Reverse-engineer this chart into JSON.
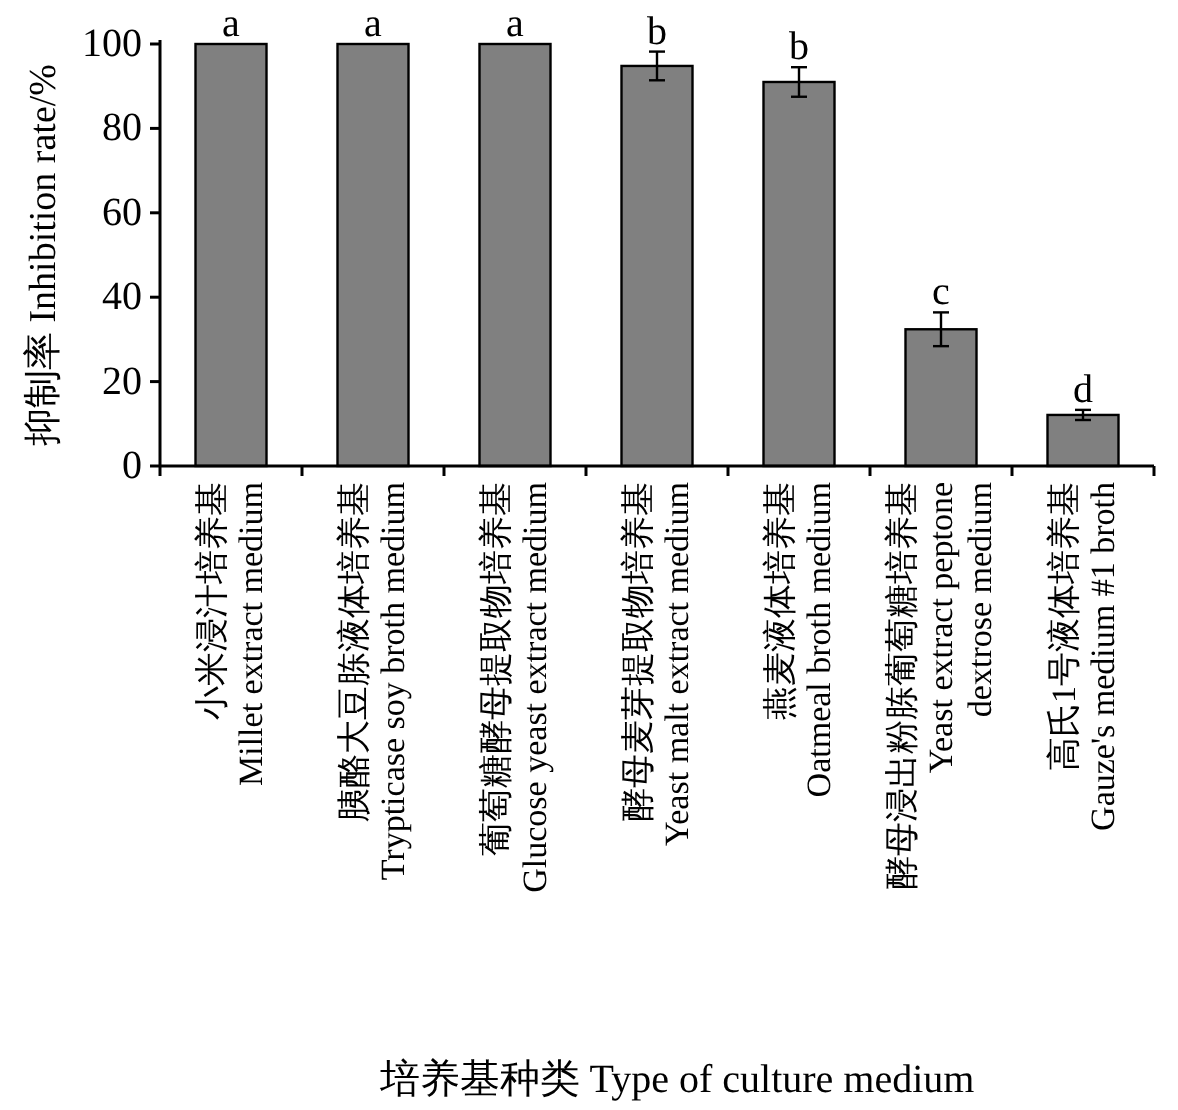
{
  "chart_data": {
    "type": "bar",
    "xlabel": "培养基种类 Type of culture medium",
    "ylabel": "抑制率 Inhibition rate/%",
    "categories": [
      "小米浸汁培养基\nMillet extract medium",
      "胰酪大豆胨液体培养基\nTrypticase soy broth medium",
      "葡萄糖酵母提取物培养基\nGlucose yeast extract medium",
      "酵母麦芽提取物培养基\nYeast malt extract medium",
      "燕麦液体培养基\nOatmeal broth medium",
      "酵母浸出粉胨葡萄糖培养基\nYeast extract peptone\ndextrose medium",
      "高氏1号液体培养基\nGauze's medium #1 broth"
    ],
    "values": [
      100,
      100,
      100,
      94.8,
      91.0,
      32.4,
      12.1
    ],
    "errors": [
      null,
      null,
      null,
      3.4,
      3.5,
      4,
      1.2
    ],
    "color": "#808080",
    "ylim": [
      0,
      100
    ],
    "yticks": [
      0,
      20,
      40,
      60,
      80,
      100
    ],
    "grid": false,
    "annotations": [
      {
        "text": "a",
        "x": "小米浸汁培养基\nMillet extract medium",
        "y": 100
      },
      {
        "text": "a",
        "x": "胰酪大豆胨液体培养基\nTrypticase soy broth medium",
        "y": 100
      },
      {
        "text": "a",
        "x": "葡萄糖酵母提取物培养基\nGlucose yeast extract medium",
        "y": 100
      },
      {
        "text": "b",
        "x": "酵母麦芽提取物培养基\nYeast malt extract medium",
        "y": 98.2
      },
      {
        "text": "b",
        "x": "燕麦液体培养基\nOatmeal broth medium",
        "y": 94.5
      },
      {
        "text": "c",
        "x": "酵母浸出粉胨葡萄糖培养基\nYeast extract peptone\ndextrose medium",
        "y": 36.4
      },
      {
        "text": "d",
        "x": "高氏1号液体培养基\nGauze's medium #1 broth",
        "y": 13.3
      }
    ]
  }
}
